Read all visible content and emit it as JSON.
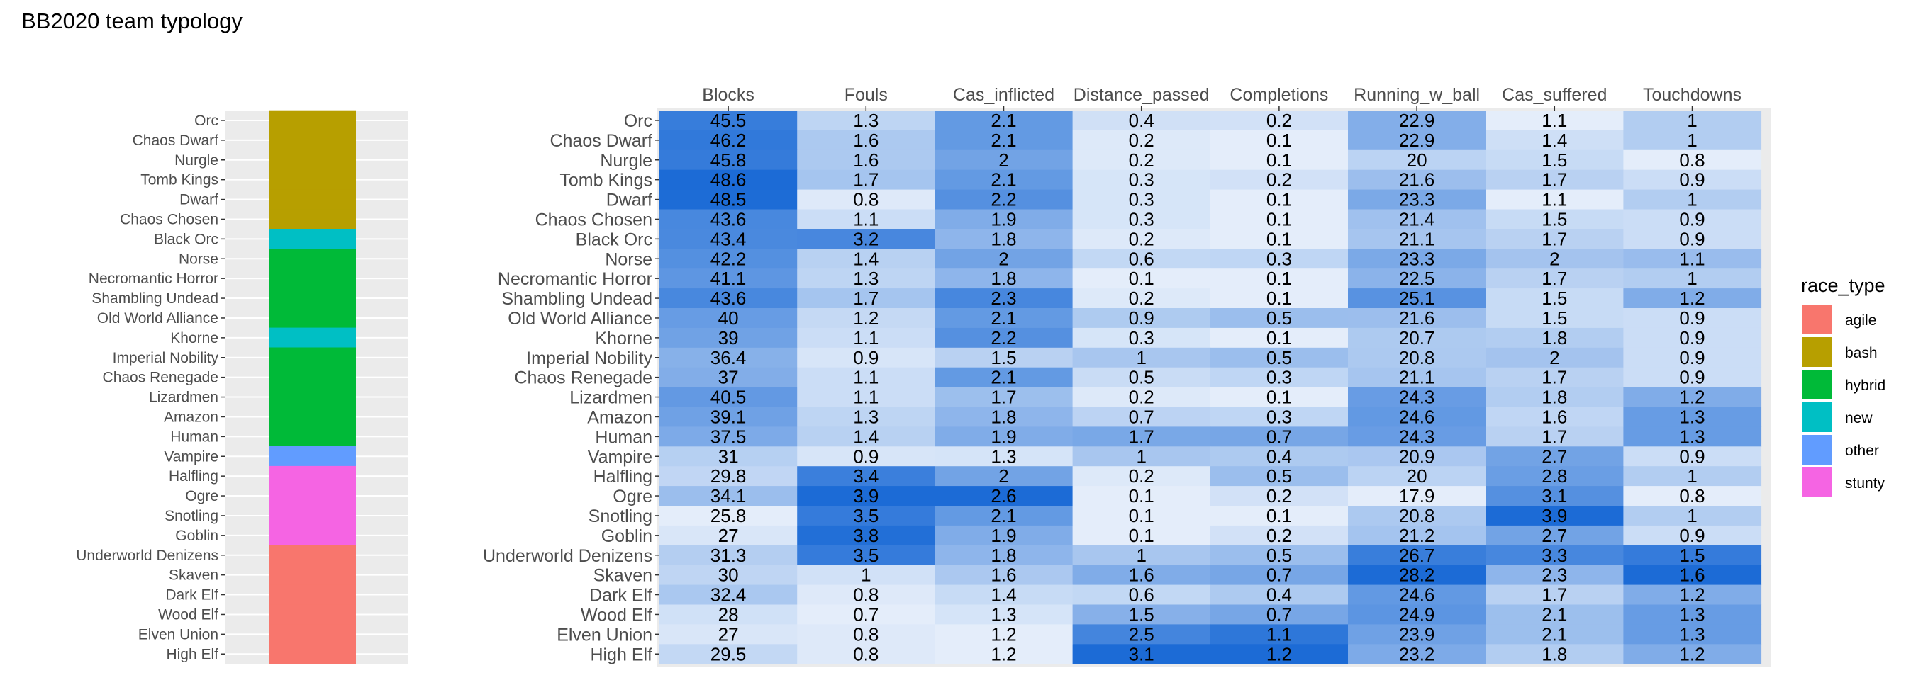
{
  "title": "BB2020 team typology",
  "chart_data": [
    {
      "type": "bar",
      "orientation": "horizontal-stacked-categorical",
      "categories": [
        "Orc",
        "Chaos Dwarf",
        "Nurgle",
        "Tomb Kings",
        "Dwarf",
        "Chaos Chosen",
        "Black Orc",
        "Norse",
        "Necromantic Horror",
        "Shambling Undead",
        "Old World Alliance",
        "Khorne",
        "Imperial Nobility",
        "Chaos Renegade",
        "Lizardmen",
        "Amazon",
        "Human",
        "Vampire",
        "Halfling",
        "Ogre",
        "Snotling",
        "Goblin",
        "Underworld Denizens",
        "Skaven",
        "Dark Elf",
        "Wood Elf",
        "Elven Union",
        "High Elf"
      ],
      "race_type": [
        "bash",
        "bash",
        "bash",
        "bash",
        "bash",
        "bash",
        "new",
        "hybrid",
        "hybrid",
        "hybrid",
        "hybrid",
        "new",
        "hybrid",
        "hybrid",
        "hybrid",
        "hybrid",
        "hybrid",
        "other",
        "stunty",
        "stunty",
        "stunty",
        "stunty",
        "agile",
        "agile",
        "agile",
        "agile",
        "agile",
        "agile"
      ],
      "legend_title": "race_type",
      "legend": [
        {
          "name": "agile",
          "color": "#F8766D"
        },
        {
          "name": "bash",
          "color": "#B79F00"
        },
        {
          "name": "hybrid",
          "color": "#00BA38"
        },
        {
          "name": "new",
          "color": "#00BFC4"
        },
        {
          "name": "other",
          "color": "#619CFF"
        },
        {
          "name": "stunty",
          "color": "#F564E3"
        }
      ],
      "legend_position": "right",
      "grid": true
    },
    {
      "type": "heatmap",
      "columns": [
        "Blocks",
        "Fouls",
        "Cas_inflicted",
        "Distance_passed",
        "Completions",
        "Running_w_ball",
        "Cas_suffered",
        "Touchdowns"
      ],
      "rows": [
        "Orc",
        "Chaos Dwarf",
        "Nurgle",
        "Tomb Kings",
        "Dwarf",
        "Chaos Chosen",
        "Black Orc",
        "Norse",
        "Necromantic Horror",
        "Shambling Undead",
        "Old World Alliance",
        "Khorne",
        "Imperial Nobility",
        "Chaos Renegade",
        "Lizardmen",
        "Amazon",
        "Human",
        "Vampire",
        "Halfling",
        "Ogre",
        "Snotling",
        "Goblin",
        "Underworld Denizens",
        "Skaven",
        "Dark Elf",
        "Wood Elf",
        "Elven Union",
        "High Elf"
      ],
      "values": [
        [
          45.5,
          1.3,
          2.1,
          0.4,
          0.2,
          22.9,
          1.1,
          1
        ],
        [
          46.2,
          1.6,
          2.1,
          0.2,
          0.1,
          22.9,
          1.4,
          1
        ],
        [
          45.8,
          1.6,
          2,
          0.2,
          0.1,
          20,
          1.5,
          0.8
        ],
        [
          48.6,
          1.7,
          2.1,
          0.3,
          0.2,
          21.6,
          1.7,
          0.9
        ],
        [
          48.5,
          0.8,
          2.2,
          0.3,
          0.1,
          23.3,
          1.1,
          1
        ],
        [
          43.6,
          1.1,
          1.9,
          0.3,
          0.1,
          21.4,
          1.5,
          0.9
        ],
        [
          43.4,
          3.2,
          1.8,
          0.2,
          0.1,
          21.1,
          1.7,
          0.9
        ],
        [
          42.2,
          1.4,
          2,
          0.6,
          0.3,
          23.3,
          2,
          1.1
        ],
        [
          41.1,
          1.3,
          1.8,
          0.1,
          0.1,
          22.5,
          1.7,
          1
        ],
        [
          43.6,
          1.7,
          2.3,
          0.2,
          0.1,
          25.1,
          1.5,
          1.2
        ],
        [
          40,
          1.2,
          2.1,
          0.9,
          0.5,
          21.6,
          1.5,
          0.9
        ],
        [
          39,
          1.1,
          2.2,
          0.3,
          0.1,
          20.7,
          1.8,
          0.9
        ],
        [
          36.4,
          0.9,
          1.5,
          1,
          0.5,
          20.8,
          2,
          0.9
        ],
        [
          37,
          1.1,
          2.1,
          0.5,
          0.3,
          21.1,
          1.7,
          0.9
        ],
        [
          40.5,
          1.1,
          1.7,
          0.2,
          0.1,
          24.3,
          1.8,
          1.2
        ],
        [
          39.1,
          1.3,
          1.8,
          0.7,
          0.3,
          24.6,
          1.6,
          1.3
        ],
        [
          37.5,
          1.4,
          1.9,
          1.7,
          0.7,
          24.3,
          1.7,
          1.3
        ],
        [
          31,
          0.9,
          1.3,
          1,
          0.4,
          20.9,
          2.7,
          0.9
        ],
        [
          29.8,
          3.4,
          2,
          0.2,
          0.5,
          20,
          2.8,
          1
        ],
        [
          34.1,
          3.9,
          2.6,
          0.1,
          0.2,
          17.9,
          3.1,
          0.8
        ],
        [
          25.8,
          3.5,
          2.1,
          0.1,
          0.1,
          20.8,
          3.9,
          1
        ],
        [
          27,
          3.8,
          1.9,
          0.1,
          0.2,
          21.2,
          2.7,
          0.9
        ],
        [
          31.3,
          3.5,
          1.8,
          1,
          0.5,
          26.7,
          3.3,
          1.5
        ],
        [
          30,
          1,
          1.6,
          1.6,
          0.7,
          28.2,
          2.3,
          1.6
        ],
        [
          32.4,
          0.8,
          1.4,
          0.6,
          0.4,
          24.6,
          1.7,
          1.2
        ],
        [
          28,
          0.7,
          1.3,
          1.5,
          0.7,
          24.9,
          2.1,
          1.3
        ],
        [
          27,
          0.8,
          1.2,
          2.5,
          1.1,
          23.9,
          2.1,
          1.3
        ],
        [
          29.5,
          0.8,
          1.2,
          3.1,
          1.2,
          23.2,
          1.8,
          1.2
        ]
      ],
      "color_low": "#FFFFFF",
      "color_high": "#1C6BD6",
      "scale": "per-column"
    }
  ]
}
